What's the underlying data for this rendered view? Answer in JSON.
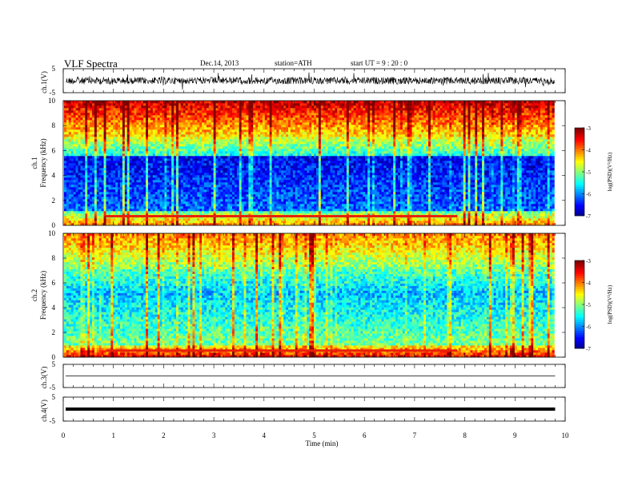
{
  "header": {
    "title": "VLF Spectra",
    "date": "Dec.14, 2013",
    "station": "station=ATH",
    "start": "start  UT =  9 : 20 : 0"
  },
  "chart_data": [
    {
      "type": "line",
      "name": "ch1-waveform",
      "ylabel": "ch.1(V)",
      "ylim": [
        -5,
        5
      ],
      "ytick_labels": [
        "5",
        "-5"
      ],
      "xlim": [
        0,
        10
      ],
      "values_description_in_data": "noisy waveform centred near 0 V with amplitude about +/-1 V"
    },
    {
      "type": "heatmap",
      "name": "ch1-spectrogram",
      "ylabel_top": "ch.1",
      "ylabel": "Frequency (kHz)",
      "ylim": [
        0,
        10
      ],
      "ytick_labels": [
        "0",
        "2",
        "4",
        "6",
        "8",
        "10"
      ],
      "colorbar": {
        "label": "log(PSD)(V²/Hz)",
        "range": [
          -7,
          -3
        ],
        "tick_labels": [
          "-3",
          "-4",
          "-5",
          "-6",
          "-7"
        ]
      },
      "xlim": [
        0,
        10
      ]
    },
    {
      "type": "heatmap",
      "name": "ch2-spectrogram",
      "ylabel_top": "ch.2",
      "ylabel": "Frequency (kHz)",
      "ylim": [
        0,
        10
      ],
      "ytick_labels": [
        "0",
        "2",
        "4",
        "6",
        "8",
        "10"
      ],
      "colorbar": {
        "label": "log(PSD)(V²/Hz)",
        "range": [
          -7,
          -3
        ],
        "tick_labels": [
          "-3",
          "-4",
          "-5",
          "-6",
          "-7"
        ]
      },
      "xlim": [
        0,
        10
      ]
    },
    {
      "type": "line",
      "name": "ch3-waveform",
      "ylabel": "ch.3(V)",
      "ylim": [
        -5,
        5
      ],
      "ytick_labels": [
        "5",
        "-5"
      ],
      "xlim": [
        0,
        10
      ]
    },
    {
      "type": "line",
      "name": "ch4-waveform",
      "ylabel": "ch.4(V)",
      "ylim": [
        -5,
        5
      ],
      "ytick_labels": [
        "5",
        "-5"
      ],
      "xlim": [
        0,
        10
      ]
    }
  ],
  "xaxis": {
    "label": "Time  (min)",
    "range": [
      0,
      10
    ],
    "tick_labels": [
      "0",
      "1",
      "2",
      "3",
      "4",
      "5",
      "6",
      "7",
      "8",
      "9",
      "10"
    ],
    "data_end": 9.8
  },
  "colors": {
    "spectrum_low": "#00008b",
    "spectrum_mid": "#00e000",
    "spectrum_high": "#ff0000"
  }
}
